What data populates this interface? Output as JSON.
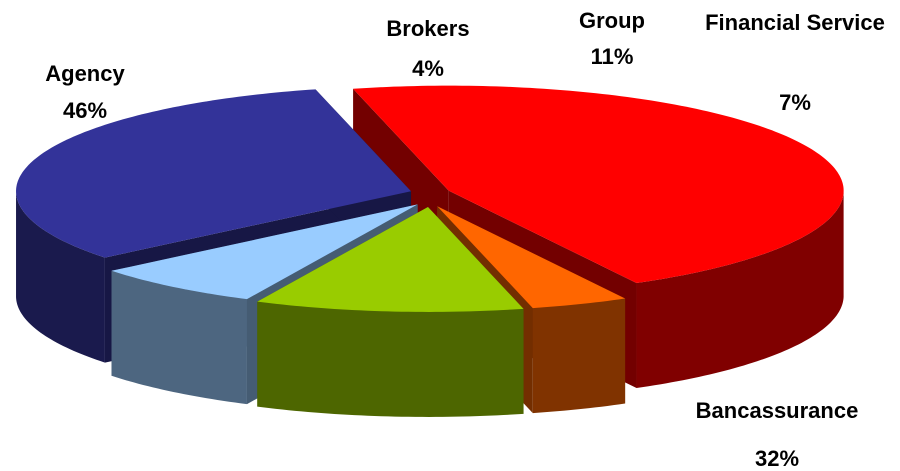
{
  "chart_data": {
    "type": "pie3d",
    "categories": [
      "Agency",
      "Brokers",
      "Group",
      "Financial Service",
      "Bancassurance"
    ],
    "values": [
      46,
      4,
      11,
      7,
      32
    ],
    "value_labels": [
      "46%",
      "4%",
      "11%",
      "7%",
      "32%"
    ],
    "colors": [
      "#ff0000",
      "#ff6600",
      "#99cc00",
      "#99ccff",
      "#333399"
    ]
  }
}
